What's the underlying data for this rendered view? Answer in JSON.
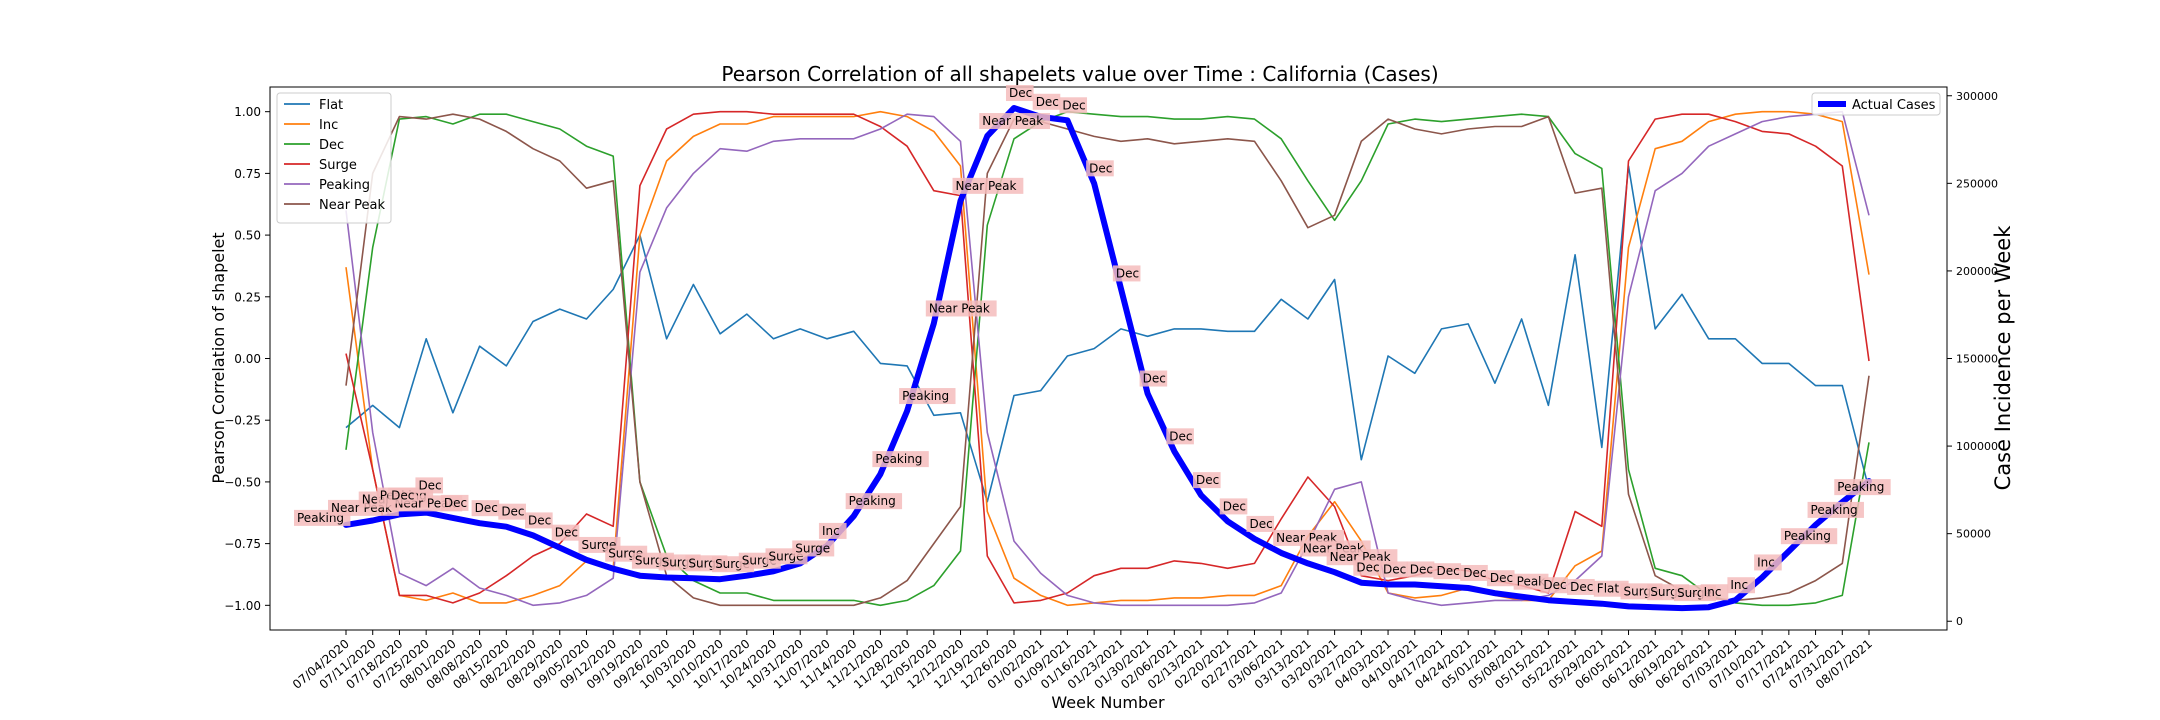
{
  "chart_data": {
    "type": "line",
    "title": "Pearson Correlation of all shapelets value over Time : California (Cases)",
    "xlabel": "Week Number",
    "ylabel": "Pearson Correlation of shapelet",
    "ylabel_right": "Case Incidence per Week",
    "ylim": [
      -1.1,
      1.1
    ],
    "ylim_right": [
      -5000,
      305000
    ],
    "yticks": [
      "1.00",
      "0.75",
      "0.50",
      "0.25",
      "0.00",
      "−0.25",
      "−0.50",
      "−0.75",
      "−1.00"
    ],
    "yticks_right": [
      "300000",
      "250000",
      "200000",
      "150000",
      "100000",
      "50000",
      "0"
    ],
    "grid": false,
    "legend_left_position": "top-left",
    "legend_right_position": "top-right",
    "categories": [
      "07/04/2020",
      "07/11/2020",
      "07/18/2020",
      "07/25/2020",
      "08/01/2020",
      "08/08/2020",
      "08/15/2020",
      "08/22/2020",
      "08/29/2020",
      "09/05/2020",
      "09/12/2020",
      "09/19/2020",
      "09/26/2020",
      "10/03/2020",
      "10/10/2020",
      "10/17/2020",
      "10/24/2020",
      "10/31/2020",
      "11/07/2020",
      "11/14/2020",
      "11/21/2020",
      "11/28/2020",
      "12/05/2020",
      "12/12/2020",
      "12/19/2020",
      "12/26/2020",
      "01/02/2021",
      "01/09/2021",
      "01/16/2021",
      "01/23/2021",
      "01/30/2021",
      "02/06/2021",
      "02/13/2021",
      "02/20/2021",
      "02/27/2021",
      "03/06/2021",
      "03/13/2021",
      "03/20/2021",
      "03/27/2021",
      "04/03/2021",
      "04/10/2021",
      "04/17/2021",
      "04/24/2021",
      "05/01/2021",
      "05/08/2021",
      "05/15/2021",
      "05/22/2021",
      "05/29/2021",
      "06/05/2021",
      "06/12/2021",
      "06/19/2021",
      "06/26/2021",
      "07/03/2021",
      "07/10/2021",
      "07/17/2021",
      "07/24/2021",
      "07/31/2021",
      "08/07/2021"
    ],
    "series": [
      {
        "name": "Flat",
        "color": "#1f77b4",
        "axis": "left",
        "values": [
          -0.28,
          -0.19,
          -0.28,
          0.08,
          -0.22,
          0.05,
          -0.03,
          0.15,
          0.2,
          0.16,
          0.28,
          0.5,
          0.08,
          0.3,
          0.1,
          0.18,
          0.08,
          0.12,
          0.08,
          0.11,
          -0.02,
          -0.03,
          -0.23,
          -0.22,
          -0.58,
          -0.15,
          -0.13,
          0.01,
          0.04,
          0.12,
          0.09,
          0.12,
          0.12,
          0.11,
          0.11,
          0.24,
          0.16,
          0.32,
          -0.41,
          0.01,
          -0.06,
          0.12,
          0.14,
          -0.1,
          0.16,
          -0.19,
          0.42,
          -0.36,
          0.78,
          0.12,
          0.26,
          0.08,
          0.08,
          -0.02,
          -0.02,
          -0.11,
          -0.11,
          -0.53
        ]
      },
      {
        "name": "Inc",
        "color": "#ff7f0e",
        "axis": "left",
        "values": [
          0.37,
          -0.45,
          -0.96,
          -0.98,
          -0.95,
          -0.99,
          -0.99,
          -0.96,
          -0.92,
          -0.82,
          -0.85,
          0.5,
          0.8,
          0.9,
          0.95,
          0.95,
          0.98,
          0.98,
          0.98,
          0.98,
          1.0,
          0.98,
          0.92,
          0.78,
          -0.62,
          -0.89,
          -0.96,
          -1.0,
          -0.99,
          -0.98,
          -0.98,
          -0.97,
          -0.97,
          -0.96,
          -0.96,
          -0.92,
          -0.72,
          -0.58,
          -0.74,
          -0.95,
          -0.97,
          -0.96,
          -0.93,
          -0.96,
          -0.98,
          -0.98,
          -0.84,
          -0.78,
          0.45,
          0.85,
          0.88,
          0.96,
          0.99,
          1.0,
          1.0,
          0.99,
          0.96,
          0.34
        ]
      },
      {
        "name": "Dec",
        "color": "#2ca02c",
        "axis": "left",
        "values": [
          -0.37,
          0.45,
          0.97,
          0.98,
          0.95,
          0.99,
          0.99,
          0.96,
          0.93,
          0.86,
          0.82,
          -0.5,
          -0.8,
          -0.9,
          -0.95,
          -0.95,
          -0.98,
          -0.98,
          -0.98,
          -0.98,
          -1.0,
          -0.98,
          -0.92,
          -0.78,
          0.54,
          0.89,
          0.96,
          1.0,
          0.99,
          0.98,
          0.98,
          0.97,
          0.97,
          0.98,
          0.97,
          0.89,
          0.72,
          0.56,
          0.72,
          0.95,
          0.97,
          0.96,
          0.97,
          0.98,
          0.99,
          0.98,
          0.83,
          0.77,
          -0.45,
          -0.85,
          -0.88,
          -0.96,
          -0.99,
          -1.0,
          -1.0,
          -0.99,
          -0.96,
          -0.34
        ]
      },
      {
        "name": "Surge",
        "color": "#d62728",
        "axis": "left",
        "values": [
          0.02,
          -0.45,
          -0.96,
          -0.96,
          -0.99,
          -0.95,
          -0.88,
          -0.8,
          -0.75,
          -0.63,
          -0.68,
          0.7,
          0.93,
          0.99,
          1.0,
          1.0,
          0.99,
          0.99,
          0.99,
          0.99,
          0.94,
          0.86,
          0.68,
          0.66,
          -0.8,
          -0.99,
          -0.98,
          -0.95,
          -0.88,
          -0.85,
          -0.85,
          -0.82,
          -0.83,
          -0.85,
          -0.83,
          -0.65,
          -0.48,
          -0.6,
          -0.88,
          -0.9,
          -0.88,
          -0.85,
          -0.86,
          -0.9,
          -0.92,
          -0.95,
          -0.62,
          -0.68,
          0.8,
          0.97,
          0.99,
          0.99,
          0.96,
          0.92,
          0.91,
          0.86,
          0.78,
          -0.01
        ]
      },
      {
        "name": "Peaking",
        "color": "#9467bd",
        "axis": "left",
        "values": [
          0.6,
          -0.3,
          -0.87,
          -0.92,
          -0.85,
          -0.93,
          -0.96,
          -1.0,
          -0.99,
          -0.96,
          -0.89,
          0.35,
          0.61,
          0.75,
          0.85,
          0.84,
          0.88,
          0.89,
          0.89,
          0.89,
          0.93,
          0.99,
          0.98,
          0.88,
          -0.3,
          -0.74,
          -0.87,
          -0.96,
          -0.99,
          -1.0,
          -1.0,
          -1.0,
          -1.0,
          -1.0,
          -0.99,
          -0.95,
          -0.75,
          -0.53,
          -0.5,
          -0.95,
          -0.98,
          -1.0,
          -0.99,
          -0.98,
          -0.98,
          -0.96,
          -0.9,
          -0.8,
          0.25,
          0.68,
          0.75,
          0.86,
          0.91,
          0.96,
          0.98,
          0.99,
          1.0,
          0.58
        ]
      },
      {
        "name": "Near Peak",
        "color": "#8c564b",
        "axis": "left",
        "values": [
          -0.11,
          0.75,
          0.98,
          0.97,
          0.99,
          0.97,
          0.92,
          0.85,
          0.8,
          0.69,
          0.72,
          -0.5,
          -0.88,
          -0.97,
          -1.0,
          -1.0,
          -1.0,
          -1.0,
          -1.0,
          -1.0,
          -0.97,
          -0.9,
          -0.75,
          -0.6,
          0.75,
          0.97,
          0.96,
          0.93,
          0.9,
          0.88,
          0.89,
          0.87,
          0.88,
          0.89,
          0.88,
          0.72,
          0.53,
          0.58,
          0.88,
          0.97,
          0.93,
          0.91,
          0.93,
          0.94,
          0.94,
          0.98,
          0.67,
          0.69,
          -0.55,
          -0.88,
          -0.94,
          -0.97,
          -0.98,
          -0.97,
          -0.95,
          -0.9,
          -0.83,
          -0.07
        ]
      },
      {
        "name": "Actual Cases",
        "color": "#0000ff",
        "axis": "right",
        "values": [
          55000,
          57500,
          61000,
          62000,
          59000,
          56000,
          54000,
          49000,
          42000,
          35000,
          30000,
          26000,
          25000,
          24500,
          24000,
          26000,
          28500,
          33000,
          43000,
          60000,
          84000,
          120000,
          170000,
          240000,
          277000,
          293000,
          288000,
          286000,
          250000,
          190000,
          130000,
          97000,
          72000,
          57000,
          47000,
          39000,
          33000,
          28000,
          22000,
          21000,
          21000,
          20000,
          19000,
          16000,
          14000,
          12000,
          11000,
          10000,
          8500,
          8000,
          7500,
          8000,
          12000,
          25000,
          40000,
          55000,
          68000,
          80000
        ]
      }
    ],
    "annotations": [
      "Peaking",
      "Near Peak",
      "Near Peak",
      "Peaking",
      "Dec",
      "Near Peak",
      "Dec",
      "Dec",
      "Dec",
      "Dec",
      "Dec",
      "Dec",
      "Surge",
      "Surge",
      "Surge",
      "Surge",
      "Surge",
      "Surge",
      "Surge",
      "Surge",
      "Surge",
      "Inc",
      "Peaking",
      "Peaking",
      "Peaking",
      "Near Peak",
      "Near Peak",
      "Near Peak",
      "Dec",
      "Dec",
      "Dec",
      "Dec",
      "Dec",
      "Dec",
      "Dec",
      "Dec",
      "Dec",
      "Dec",
      "Near Peak",
      "Near Peak",
      "Near Peak",
      "Dec",
      "Dec",
      "Dec",
      "Dec",
      "Dec",
      "Dec",
      "Peak",
      "Dec",
      "Dec",
      "Flat",
      "Surge",
      "Surge",
      "Surge",
      "Inc",
      "Inc",
      "Inc",
      "Peaking",
      "Peaking",
      "Peaking"
    ]
  }
}
